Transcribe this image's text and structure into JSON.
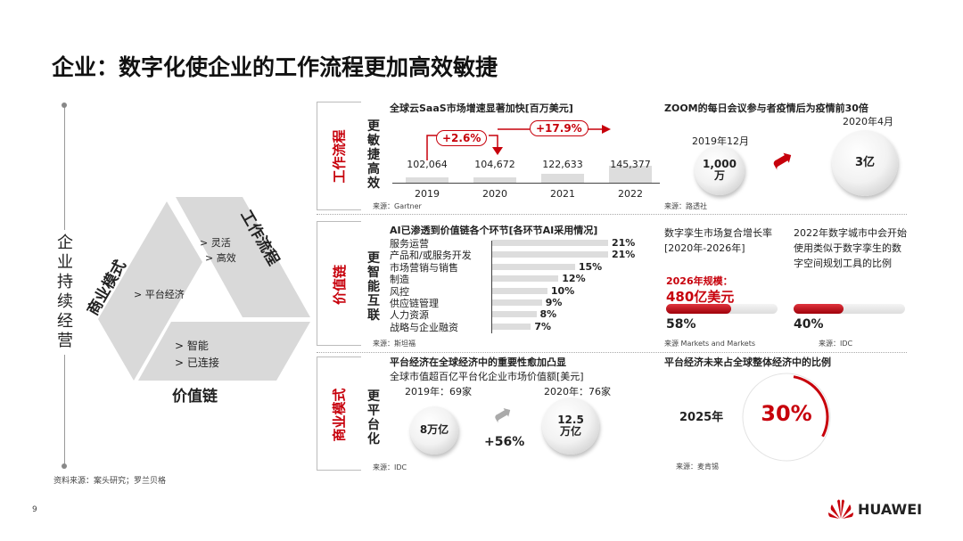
{
  "title": "企业：数字化使企业的工作流程更加高效敏捷",
  "left": {
    "vertical_label": "企业持续经营",
    "triangle": {
      "workflow": {
        "label": "工作流程",
        "items": [
          "> 灵活",
          "> 高效"
        ]
      },
      "business": {
        "label": "商业模式",
        "items": [
          "> 平台经济"
        ]
      },
      "value": {
        "label": "价值链",
        "items": [
          "> 智能",
          "> 已连接"
        ]
      }
    }
  },
  "rows": [
    {
      "tag": "工作流程",
      "vertical": "更敏捷高效",
      "chart": {
        "title": "全球云SaaS市场增速显著加快[百万美元]",
        "annotations": [
          "+2.6%",
          "+17.9%"
        ],
        "source": "来源：Gartner",
        "chart_data": {
          "type": "bar",
          "categories": [
            "2019",
            "2020",
            "2021",
            "2022"
          ],
          "values": [
            102064,
            104672,
            122633,
            145377
          ],
          "value_labels": [
            "102,064",
            "104,672",
            "122,633",
            "145,377"
          ]
        }
      },
      "side": {
        "title": "ZOOM的每日会议参与者疫情后为疫情前30倍",
        "before_date": "2019年12月",
        "before_value": "1,000 万",
        "after_date": "2020年4月",
        "after_value": "3亿",
        "source": "来源：路透社"
      }
    },
    {
      "tag": "价值链",
      "vertical": "更智能互联",
      "chart": {
        "title": "AI已渗透到价值链各个环节[各环节AI采用情况]",
        "source": "来源：斯坦福",
        "chart_data": {
          "type": "bar",
          "orientation": "horizontal",
          "categories": [
            "服务运营",
            "产品和/或服务开发",
            "市场营销与销售",
            "制造",
            "风控",
            "供应链管理",
            "人力资源",
            "战略与企业融资"
          ],
          "values": [
            21,
            21,
            15,
            12,
            10,
            9,
            8,
            7
          ],
          "value_labels": [
            "21%",
            "21%",
            "15%",
            "12%",
            "10%",
            "9%",
            "8%",
            "7%"
          ]
        }
      },
      "side": [
        {
          "title": "数字孪生市场复合增长率",
          "subtitle": "[2020年-2026年]",
          "highlight_label": "2026年规模：",
          "highlight_value": "480亿美元",
          "percent": 58,
          "percent_label": "58%",
          "source": "来源 Markets and Markets"
        },
        {
          "title": "2022年数字城市中会开始使用类似于数字孪生的数字空间规划工具的比例",
          "percent": 40,
          "percent_label": "40%",
          "source": "来源：IDC"
        }
      ]
    },
    {
      "tag": "商业模式",
      "vertical": "更平台化",
      "chart": {
        "title": "平台经济在全球经济中的重要性愈加凸显",
        "subtitle": "全球市值超百亿平台化企业市场价值额[美元]",
        "before_label": "2019年：69家",
        "before_value": "8万亿",
        "growth": "+56%",
        "after_label": "2020年：76家",
        "after_value": "12.5 万亿",
        "source": "来源：IDC"
      },
      "side": {
        "title": "平台经济未来占全球整体经济中的比例",
        "year": "2025年",
        "percent": 30,
        "percent_label": "30%",
        "source": "来源：麦肯锡"
      }
    }
  ],
  "footer": {
    "source": "资料来源：案头研究；罗兰贝格",
    "page": "9",
    "brand": "HUAWEI"
  },
  "colors": {
    "accent": "#c7000b",
    "bar": "#dddddd"
  }
}
